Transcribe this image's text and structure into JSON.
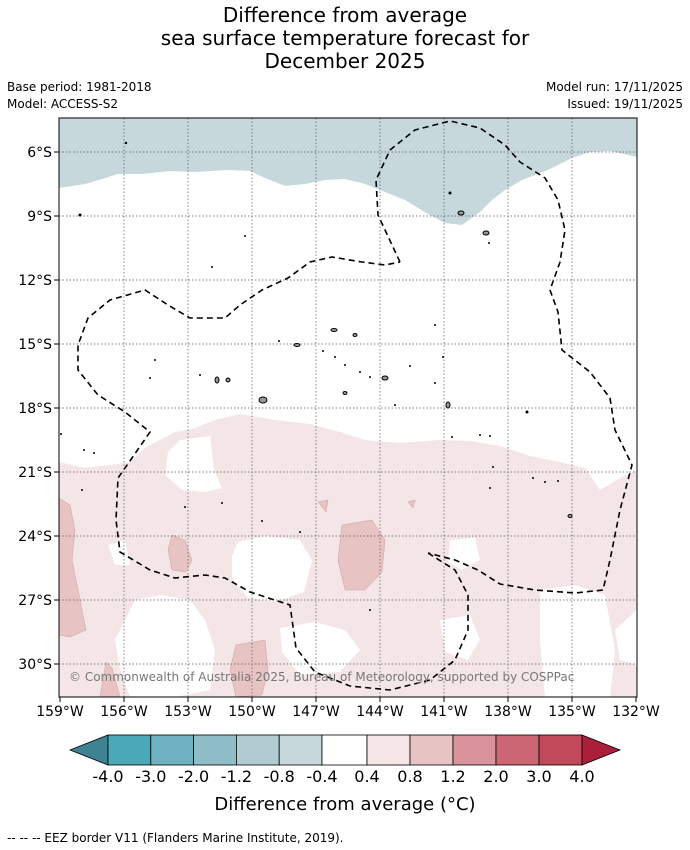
{
  "title": {
    "line1": "Difference from average",
    "line2": "sea surface temperature forecast for",
    "line3": "December 2025"
  },
  "info": {
    "base_period": "Base period: 1981-2018",
    "model": "Model: ACCESS-S2",
    "model_run": "Model run: 17/11/2025",
    "issued": "Issued: 19/11/2025"
  },
  "map": {
    "lat_labels": [
      "6°S",
      "9°S",
      "12°S",
      "15°S",
      "18°S",
      "21°S",
      "24°S",
      "27°S",
      "30°S"
    ],
    "lon_labels": [
      "159°W",
      "156°W",
      "153°W",
      "150°W",
      "147°W",
      "144°W",
      "141°W",
      "138°W",
      "135°W",
      "132°W"
    ],
    "copyright": "© Commonwealth of Australia 2025, Bureau of Meteorology, supported by COSPPac"
  },
  "colorbar": {
    "colors": [
      "#3e8392",
      "#4aa8b9",
      "#6fb1c0",
      "#8ebdc8",
      "#b0cbd1",
      "#c7d8dc",
      "#ffffff",
      "#f4e6e6",
      "#e8c3c4",
      "#d9939b",
      "#cd6674",
      "#c04a5a",
      "#ab1f3a"
    ],
    "tick_labels": [
      "-4.0",
      "-3.0",
      "-2.0",
      "-1.2",
      "-0.8",
      "-0.4",
      "0.4",
      "0.8",
      "1.2",
      "2.0",
      "3.0",
      "4.0"
    ],
    "title": "Difference from average (°C)"
  },
  "footnote": "--  --  -- EEZ border V11 (Flanders Marine Institute, 2019)."
}
